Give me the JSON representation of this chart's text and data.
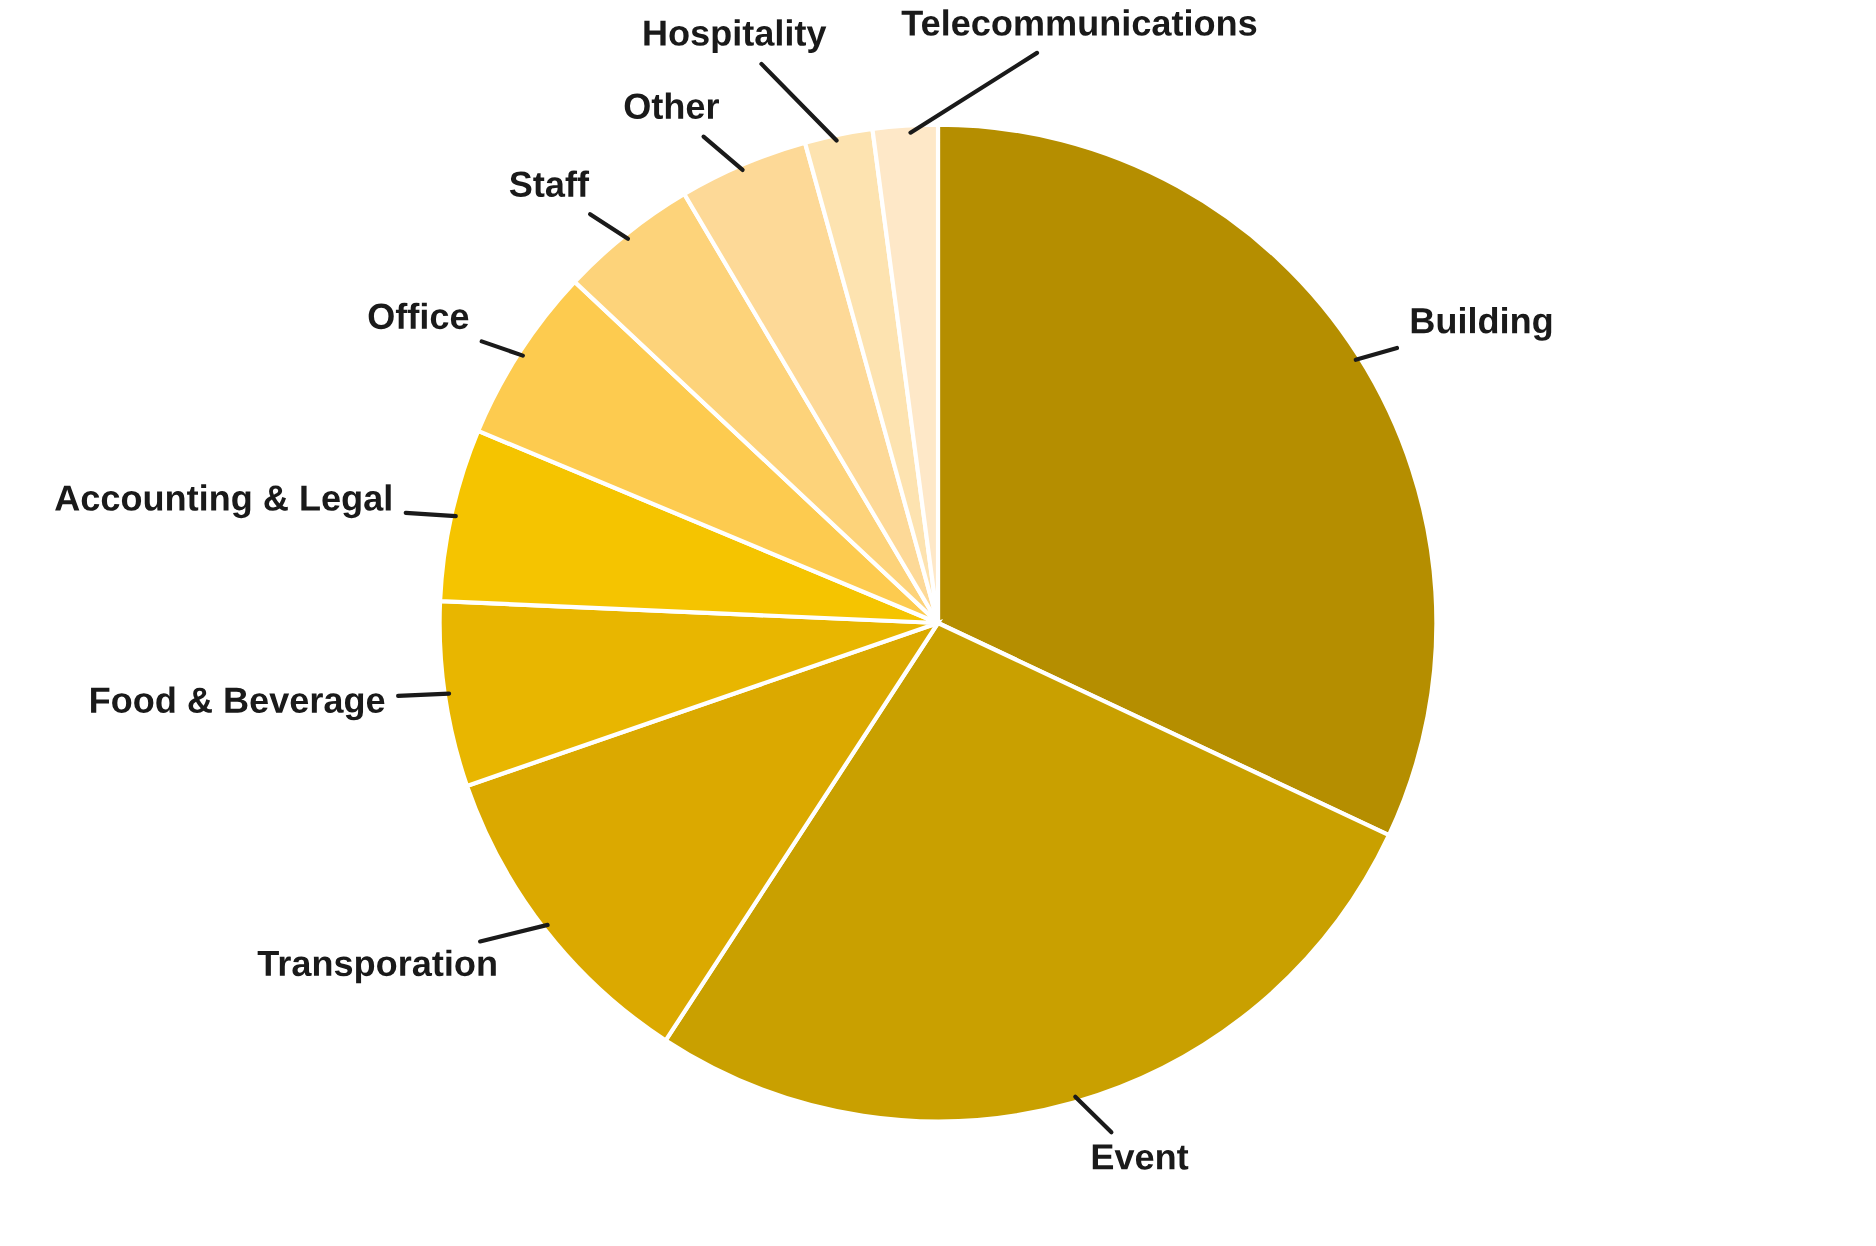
{
  "chart_data": {
    "type": "pie",
    "categories": [
      "Building",
      "Event",
      "Transporation",
      "Food & Beverage",
      "Accounting & Legal",
      "Office",
      "Staff",
      "Other",
      "Hospitality",
      "Telecommunications"
    ],
    "values": [
      32.0,
      27.2,
      10.5,
      6.0,
      5.6,
      5.7,
      4.5,
      4.2,
      2.2,
      2.1
    ],
    "colors": [
      "#b58e00",
      "#c9a000",
      "#dba900",
      "#e8b600",
      "#f5c400",
      "#fdcb4f",
      "#fdd37a",
      "#fdd997",
      "#fde3b0",
      "#fee8c8"
    ]
  }
}
